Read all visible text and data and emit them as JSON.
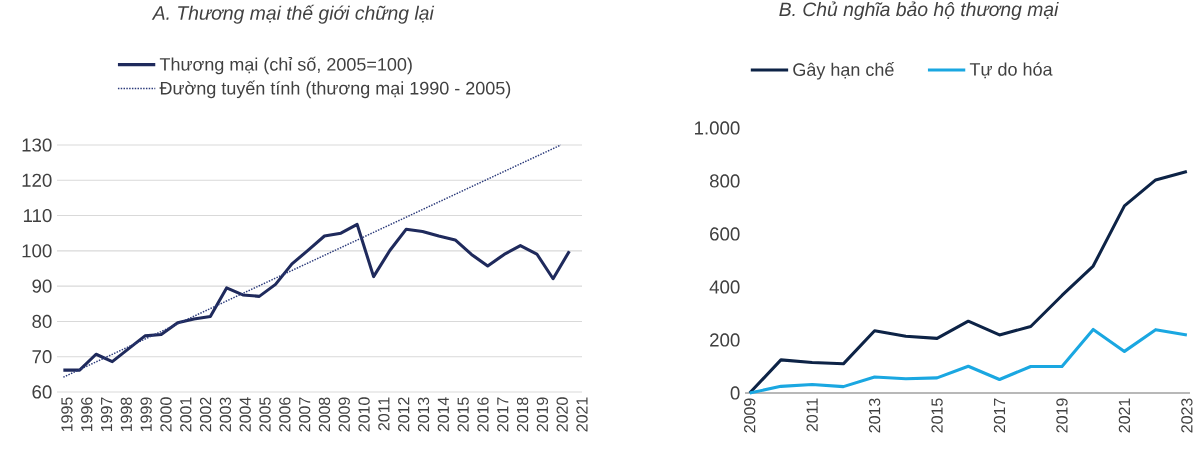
{
  "chart_data": [
    {
      "type": "line",
      "title": "A. Thương mại thế giới chững lại",
      "series": [
        {
          "name": "Thương mại (chỉ số, 2005=100)",
          "color": "#1f2a5c",
          "line_style": "solid",
          "x": [
            1994.82,
            1995.64,
            1996.47,
            1997.29,
            1998.12,
            1998.94,
            1999.76,
            2000.59,
            2001.41,
            2002.24,
            2003.06,
            2003.88,
            2004.71,
            2005.53,
            2006.36,
            2007.18,
            2008.0,
            2008.83,
            2009.65,
            2010.48,
            2011.3,
            2012.12,
            2012.95,
            2013.77,
            2014.6,
            2015.42,
            2016.24,
            2017.07,
            2017.89,
            2018.72,
            2019.54,
            2020.36
          ],
          "values": [
            66.2,
            66.2,
            70.7,
            68.6,
            72.3,
            75.9,
            76.3,
            79.6,
            80.7,
            81.4,
            89.5,
            87.5,
            87.1,
            90.5,
            96.3,
            100.2,
            104.2,
            105.0,
            107.5,
            92.7,
            100.1,
            106.1,
            105.5,
            104.2,
            103.1,
            99.0,
            95.7,
            99.0,
            101.5,
            99.1,
            92.1,
            99.9
          ]
        },
        {
          "name": "Đường tuyến tính (thương mại 1990 - 2005)",
          "color": "#2b3a7a",
          "line_style": "dotted",
          "x": [
            1994.82,
            2019.93
          ],
          "values": [
            64.2,
            130
          ]
        }
      ],
      "xlim": [
        1994.5,
        2021
      ],
      "ylim": [
        60,
        130
      ],
      "xticks": [
        1995,
        1996,
        1997,
        1998,
        1999,
        2000,
        2001,
        2002,
        2003,
        2004,
        2005,
        2006,
        2007,
        2008,
        2009,
        2010,
        2011,
        2012,
        2013,
        2014,
        2015,
        2016,
        2017,
        2018,
        2019,
        2020,
        2021
      ],
      "yticks": [
        60,
        70,
        80,
        90,
        100,
        110,
        120,
        130
      ],
      "grid": "y",
      "legend": "top"
    },
    {
      "type": "line",
      "title": "B. Chủ nghĩa bảo hộ thương mại",
      "x": [
        2009,
        2010,
        2011,
        2012,
        2013,
        2014,
        2015,
        2016,
        2017,
        2018,
        2019,
        2020,
        2021,
        2022,
        2023
      ],
      "series": [
        {
          "name": "Gây hạn chế",
          "color": "#0d2346",
          "values": [
            0,
            125,
            115,
            110,
            235,
            214,
            206,
            271,
            219,
            251,
            368,
            479,
            706,
            804,
            836
          ]
        },
        {
          "name": "Tự do hóa",
          "color": "#1aa7e1",
          "values": [
            0,
            25,
            32,
            24,
            60,
            54,
            57,
            101,
            51,
            100,
            100,
            240,
            157,
            239,
            219
          ]
        }
      ],
      "xlim": [
        2008.85,
        2023.1
      ],
      "ylim": [
        0,
        1000
      ],
      "xticks": [
        2009,
        2011,
        2013,
        2015,
        2017,
        2019,
        2021,
        2023
      ],
      "yticks": [
        0,
        200,
        400,
        600,
        800,
        {
          "value": 1000,
          "label": "1.000"
        }
      ],
      "legend": "top"
    }
  ]
}
